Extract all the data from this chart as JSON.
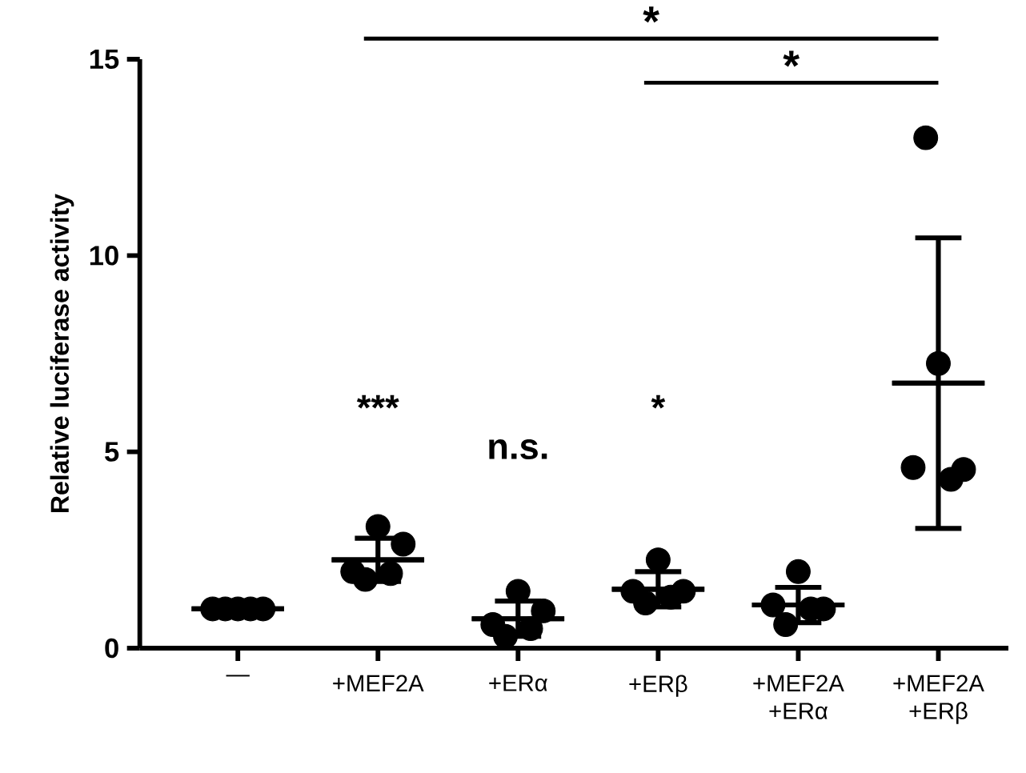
{
  "chart_data": {
    "type": "scatter",
    "ylabel": "Relative luciferase activity",
    "categories": [
      "—",
      "+MEF2A",
      "+ERα",
      "+ERβ",
      "+MEF2A +ERα",
      "+MEF2A +ERβ"
    ],
    "ylim": [
      0,
      15
    ],
    "yticks": [
      0,
      5,
      10,
      15
    ],
    "series": [
      {
        "color": "#000000",
        "values": [
          1.0,
          1.95,
          0.6,
          1.45,
          1.1,
          4.6
        ]
      },
      {
        "color": "#000000",
        "values": [
          1.0,
          1.75,
          0.3,
          1.15,
          0.6,
          13.0
        ]
      },
      {
        "color": "#000000",
        "values": [
          1.0,
          3.1,
          1.45,
          2.25,
          1.95,
          7.25
        ]
      },
      {
        "color": "#000000",
        "values": [
          1.0,
          1.9,
          0.5,
          1.3,
          1.0,
          4.3
        ]
      },
      {
        "color": "#000000",
        "values": [
          1.0,
          2.65,
          0.95,
          1.45,
          1.0,
          4.55
        ]
      },
      {
        "type": "box",
        "color": "#000000",
        "boxes": [
          {
            "low": 0.95,
            "q1": 1.0,
            "median": 1.0,
            "q3": 1.0,
            "high": 1.05
          },
          {
            "low": 1.7,
            "q1": 2.25,
            "median": 2.25,
            "q3": 2.25,
            "high": 2.8
          },
          {
            "low": 0.3,
            "q1": 0.75,
            "median": 0.75,
            "q3": 0.75,
            "high": 1.2
          },
          {
            "low": 1.05,
            "q1": 1.5,
            "median": 1.5,
            "q3": 1.5,
            "high": 1.95
          },
          {
            "low": 0.65,
            "q1": 1.1,
            "median": 1.1,
            "q3": 1.1,
            "high": 1.55
          },
          {
            "low": 3.05,
            "q1": 6.75,
            "median": 6.75,
            "q3": 6.75,
            "high": 10.45
          }
        ]
      }
    ],
    "annotations": [
      "***",
      "n.s.",
      "*",
      "*",
      "*"
    ]
  }
}
